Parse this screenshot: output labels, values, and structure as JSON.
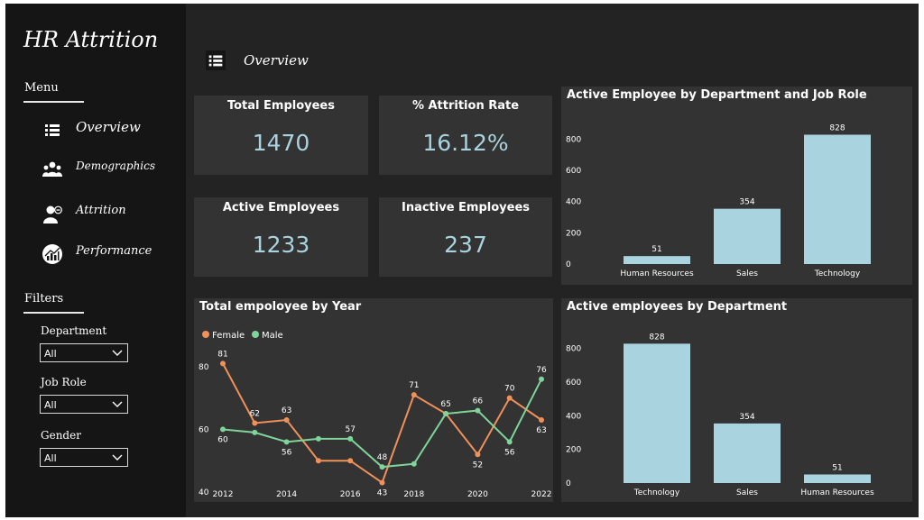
{
  "sidebar": {
    "title": "HR Attrition",
    "menu_label": "Menu",
    "nav": [
      {
        "label": "Overview",
        "icon": "list-icon"
      },
      {
        "label": "Demographics",
        "icon": "people-icon"
      },
      {
        "label": "Attrition",
        "icon": "user-remove-icon"
      },
      {
        "label": "Performance",
        "icon": "performance-chart-icon"
      }
    ],
    "filters_label": "Filters",
    "filters": [
      {
        "label": "Department",
        "value": "All"
      },
      {
        "label": "Job Role",
        "value": "All"
      },
      {
        "label": "Gender",
        "value": "All"
      }
    ]
  },
  "header": {
    "title": "Overview",
    "icon": "list-icon"
  },
  "kpis": [
    {
      "label": "Total Employees",
      "value": "1470"
    },
    {
      "label": "% Attrition Rate",
      "value": "16.12%"
    },
    {
      "label": "Active Employees",
      "value": "1233"
    },
    {
      "label": "Inactive Employees",
      "value": "237"
    }
  ],
  "colors": {
    "bar": "#a9d3df",
    "female": "#f0915a",
    "male": "#7fd49a",
    "card": "#333333",
    "background": "#232323",
    "sidebar": "#151515"
  },
  "chart_data": [
    {
      "type": "bar",
      "title": "Active Employee by Department and Job Role",
      "categories": [
        "Human Resources",
        "Sales",
        "Technology"
      ],
      "values": [
        51,
        354,
        828
      ],
      "ylim": [
        0,
        900
      ],
      "yticks": [
        0,
        200,
        400,
        600,
        800
      ],
      "grid": false
    },
    {
      "type": "line",
      "title": "Total empoloyee by Year",
      "x": [
        2012,
        2013,
        2014,
        2015,
        2016,
        2017,
        2018,
        2019,
        2020,
        2021,
        2022
      ],
      "xticks": [
        2012,
        2014,
        2016,
        2018,
        2020,
        2022
      ],
      "yticks": [
        40,
        60,
        80
      ],
      "ylim": [
        40,
        86
      ],
      "legend": "top-left",
      "series": [
        {
          "name": "Female",
          "values": [
            81,
            62,
            63,
            50,
            50,
            43,
            71,
            65,
            52,
            70,
            63
          ],
          "labels": [
            "81",
            "62",
            "63",
            "",
            "",
            "43",
            "71",
            "",
            "52",
            "70",
            "63"
          ]
        },
        {
          "name": "Male",
          "values": [
            60,
            59,
            56,
            57,
            57,
            48,
            49,
            65,
            66,
            56,
            76
          ],
          "labels": [
            "60",
            "",
            "56",
            "",
            "57",
            "48",
            "",
            "65",
            "66",
            "56",
            "76"
          ]
        }
      ]
    },
    {
      "type": "bar",
      "title": "Active employees by Department",
      "categories": [
        "Technology",
        "Sales",
        "Human Resources"
      ],
      "values": [
        828,
        354,
        51
      ],
      "ylim": [
        0,
        830
      ],
      "yticks": [
        0,
        200,
        400,
        600,
        800
      ],
      "grid": false
    }
  ]
}
